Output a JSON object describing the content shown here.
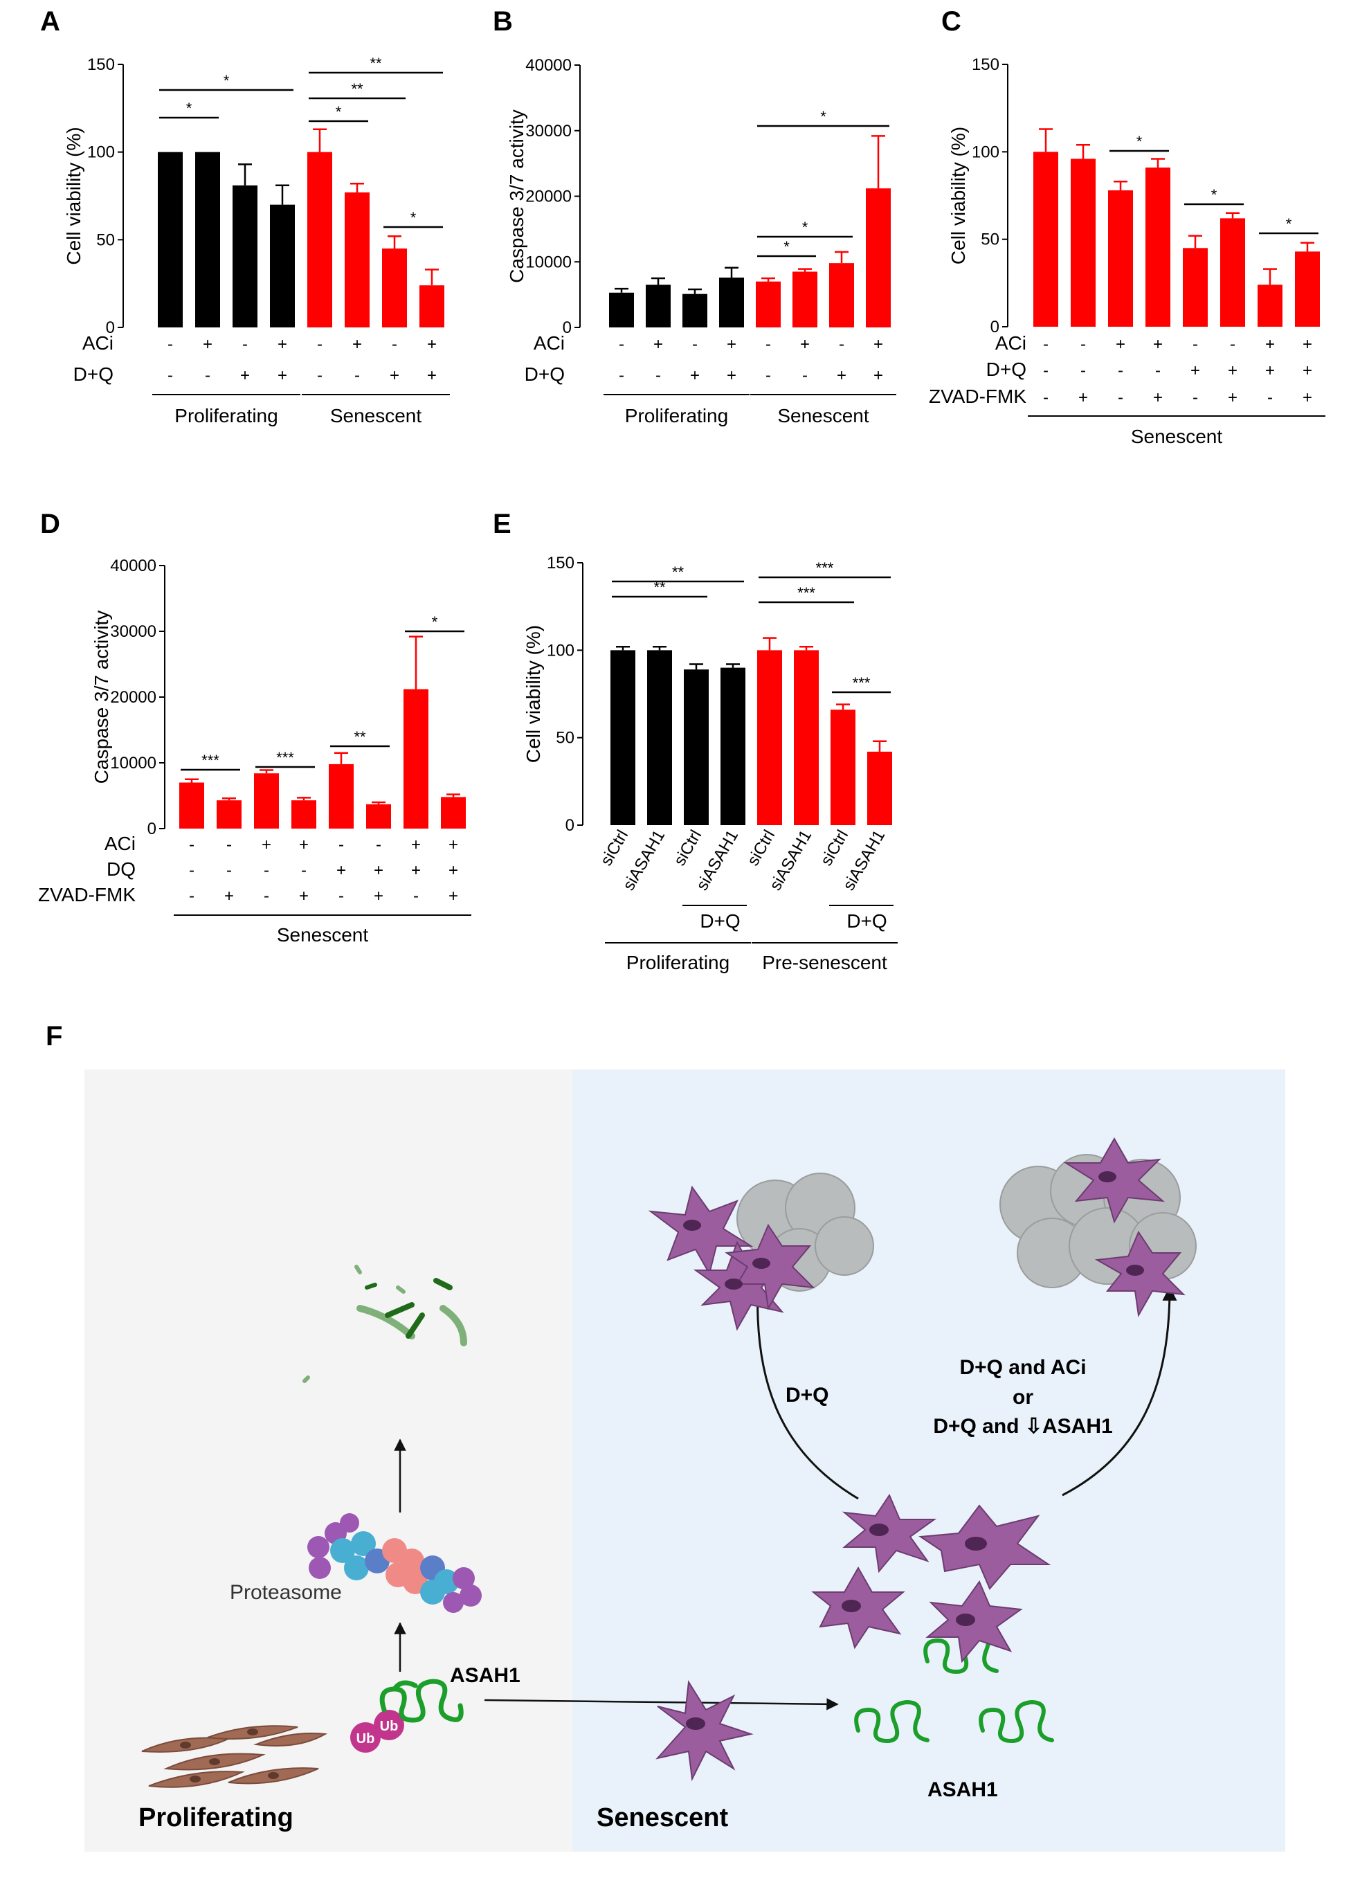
{
  "panels": {
    "A": "A",
    "B": "B",
    "C": "C",
    "D": "D",
    "E": "E",
    "F": "F"
  },
  "colors": {
    "proliferating": "#000000",
    "senescent": "#ff0000",
    "green": "#1c9e2a",
    "cell": "#9b5d9e",
    "bgLeft": "#f4f4f4",
    "bgRight": "#e9f2fa"
  },
  "chart_data": [
    {
      "panel": "A",
      "type": "bar",
      "ylabel": "Cell viability (%)",
      "ylim": [
        0,
        150
      ],
      "yticks": [
        0,
        50,
        100,
        150
      ],
      "values": [
        100,
        100,
        81,
        70,
        100,
        77,
        45,
        24
      ],
      "errors": [
        0,
        0,
        12,
        11,
        13,
        5,
        7,
        9
      ],
      "colors": [
        "#000000",
        "#000000",
        "#000000",
        "#000000",
        "#ff0000",
        "#ff0000",
        "#ff0000",
        "#ff0000"
      ],
      "rows": [
        {
          "label": "ACi",
          "marks": [
            "-",
            "+",
            "-",
            "+",
            "-",
            "+",
            "-",
            "+"
          ]
        },
        {
          "label": "D+Q",
          "marks": [
            "-",
            "-",
            "+",
            "+",
            "-",
            "-",
            "+",
            "+"
          ]
        }
      ],
      "groups": [
        {
          "label": "Proliferating",
          "from": 0,
          "to": 3
        },
        {
          "label": "Senescent",
          "from": 4,
          "to": 7
        }
      ],
      "significance": [
        {
          "from": 0,
          "to": 1,
          "label": "*"
        },
        {
          "from": 0,
          "to": 3,
          "label": "*"
        },
        {
          "from": 4,
          "to": 5,
          "label": "*"
        },
        {
          "from": 4,
          "to": 6,
          "label": "**"
        },
        {
          "from": 4,
          "to": 7,
          "label": "**"
        },
        {
          "from": 6,
          "to": 7,
          "label": "*"
        }
      ]
    },
    {
      "panel": "B",
      "type": "bar",
      "ylabel": "Caspase 3/7 activity",
      "ylim": [
        0,
        40000
      ],
      "yticks": [
        0,
        10000,
        20000,
        30000,
        40000
      ],
      "values": [
        5300,
        6500,
        5100,
        7600,
        7000,
        8500,
        9800,
        21200
      ],
      "errors": [
        600,
        1000,
        700,
        1500,
        500,
        400,
        1700,
        8000
      ],
      "colors": [
        "#000000",
        "#000000",
        "#000000",
        "#000000",
        "#ff0000",
        "#ff0000",
        "#ff0000",
        "#ff0000"
      ],
      "rows": [
        {
          "label": "ACi",
          "marks": [
            "-",
            "+",
            "-",
            "+",
            "-",
            "+",
            "-",
            "+"
          ]
        },
        {
          "label": "D+Q",
          "marks": [
            "-",
            "-",
            "+",
            "+",
            "-",
            "-",
            "+",
            "+"
          ]
        }
      ],
      "groups": [
        {
          "label": "Proliferating",
          "from": 0,
          "to": 3
        },
        {
          "label": "Senescent",
          "from": 4,
          "to": 7
        }
      ],
      "significance": [
        {
          "from": 4,
          "to": 5,
          "label": "*"
        },
        {
          "from": 4,
          "to": 6,
          "label": "*"
        },
        {
          "from": 4,
          "to": 7,
          "label": "*"
        }
      ]
    },
    {
      "panel": "C",
      "type": "bar",
      "ylabel": "Cell viability (%)",
      "ylim": [
        0,
        150
      ],
      "yticks": [
        0,
        50,
        100,
        150
      ],
      "values": [
        100,
        96,
        78,
        91,
        45,
        62,
        24,
        43
      ],
      "errors": [
        13,
        8,
        5,
        5,
        7,
        3,
        9,
        5
      ],
      "colors": [
        "#ff0000",
        "#ff0000",
        "#ff0000",
        "#ff0000",
        "#ff0000",
        "#ff0000",
        "#ff0000",
        "#ff0000"
      ],
      "rows": [
        {
          "label": "ACi",
          "marks": [
            "-",
            "-",
            "+",
            "+",
            "-",
            "-",
            "+",
            "+"
          ]
        },
        {
          "label": "D+Q",
          "marks": [
            "-",
            "-",
            "-",
            "-",
            "+",
            "+",
            "+",
            "+"
          ]
        },
        {
          "label": "ZVAD-FMK",
          "marks": [
            "-",
            "+",
            "-",
            "+",
            "-",
            "+",
            "-",
            "+"
          ]
        }
      ],
      "groups": [
        {
          "label": "Senescent",
          "from": 0,
          "to": 7
        }
      ],
      "significance": [
        {
          "from": 2,
          "to": 3,
          "label": "*"
        },
        {
          "from": 4,
          "to": 5,
          "label": "*"
        },
        {
          "from": 6,
          "to": 7,
          "label": "*"
        }
      ]
    },
    {
      "panel": "D",
      "type": "bar",
      "ylabel": "Caspase 3/7 activity",
      "ylim": [
        0,
        40000
      ],
      "yticks": [
        0,
        10000,
        20000,
        30000,
        40000
      ],
      "values": [
        7000,
        4300,
        8400,
        4300,
        9800,
        3700,
        21200,
        4800
      ],
      "errors": [
        500,
        300,
        500,
        400,
        1700,
        300,
        8000,
        400
      ],
      "colors": [
        "#ff0000",
        "#ff0000",
        "#ff0000",
        "#ff0000",
        "#ff0000",
        "#ff0000",
        "#ff0000",
        "#ff0000"
      ],
      "rows": [
        {
          "label": "ACi",
          "marks": [
            "-",
            "-",
            "+",
            "+",
            "-",
            "-",
            "+",
            "+"
          ]
        },
        {
          "label": "DQ",
          "marks": [
            "-",
            "-",
            "-",
            "-",
            "+",
            "+",
            "+",
            "+"
          ]
        },
        {
          "label": "ZVAD-FMK",
          "marks": [
            "-",
            "+",
            "-",
            "+",
            "-",
            "+",
            "-",
            "+"
          ]
        }
      ],
      "groups": [
        {
          "label": "Senescent",
          "from": 0,
          "to": 7
        }
      ],
      "significance": [
        {
          "from": 0,
          "to": 1,
          "label": "***"
        },
        {
          "from": 2,
          "to": 3,
          "label": "***"
        },
        {
          "from": 4,
          "to": 5,
          "label": "**"
        },
        {
          "from": 6,
          "to": 7,
          "label": "*"
        }
      ]
    },
    {
      "panel": "E",
      "type": "bar",
      "ylabel": "Cell viability (%)",
      "ylim": [
        0,
        150
      ],
      "yticks": [
        0,
        50,
        100,
        150
      ],
      "values": [
        100,
        100,
        89,
        90,
        100,
        100,
        66,
        42
      ],
      "errors": [
        2,
        2,
        3,
        2,
        7,
        2,
        3,
        6
      ],
      "colors": [
        "#000000",
        "#000000",
        "#000000",
        "#000000",
        "#ff0000",
        "#ff0000",
        "#ff0000",
        "#ff0000"
      ],
      "categories": [
        "siCtrl",
        "siASAH1",
        "siCtrl",
        "siASAH1",
        "siCtrl",
        "siASAH1",
        "siCtrl",
        "siASAH1"
      ],
      "treatment": [
        {
          "label": "D+Q",
          "from": 2,
          "to": 3
        },
        {
          "label": "D+Q",
          "from": 6,
          "to": 7
        }
      ],
      "groups": [
        {
          "label": "Proliferating",
          "from": 0,
          "to": 3
        },
        {
          "label": "Pre-senescent",
          "from": 4,
          "to": 7
        }
      ],
      "significance": [
        {
          "from": 0,
          "to": 2,
          "label": "**"
        },
        {
          "from": 0,
          "to": 3,
          "label": "**"
        },
        {
          "from": 4,
          "to": 6,
          "label": "***"
        },
        {
          "from": 4,
          "to": 7,
          "label": "***"
        },
        {
          "from": 6,
          "to": 7,
          "label": "***"
        }
      ]
    }
  ],
  "diagram": {
    "proteasome": "Proteasome",
    "asah1_left": "ASAH1",
    "asah1_right": "ASAH1",
    "ub": "Ub",
    "proliferating": "Proliferating",
    "senescent": "Senescent",
    "arrow_left_label": "D+Q",
    "arrow_right_line1": "D+Q and ACi",
    "arrow_right_line2": "or",
    "arrow_right_line3": "D+Q and ⇩ASAH1"
  }
}
